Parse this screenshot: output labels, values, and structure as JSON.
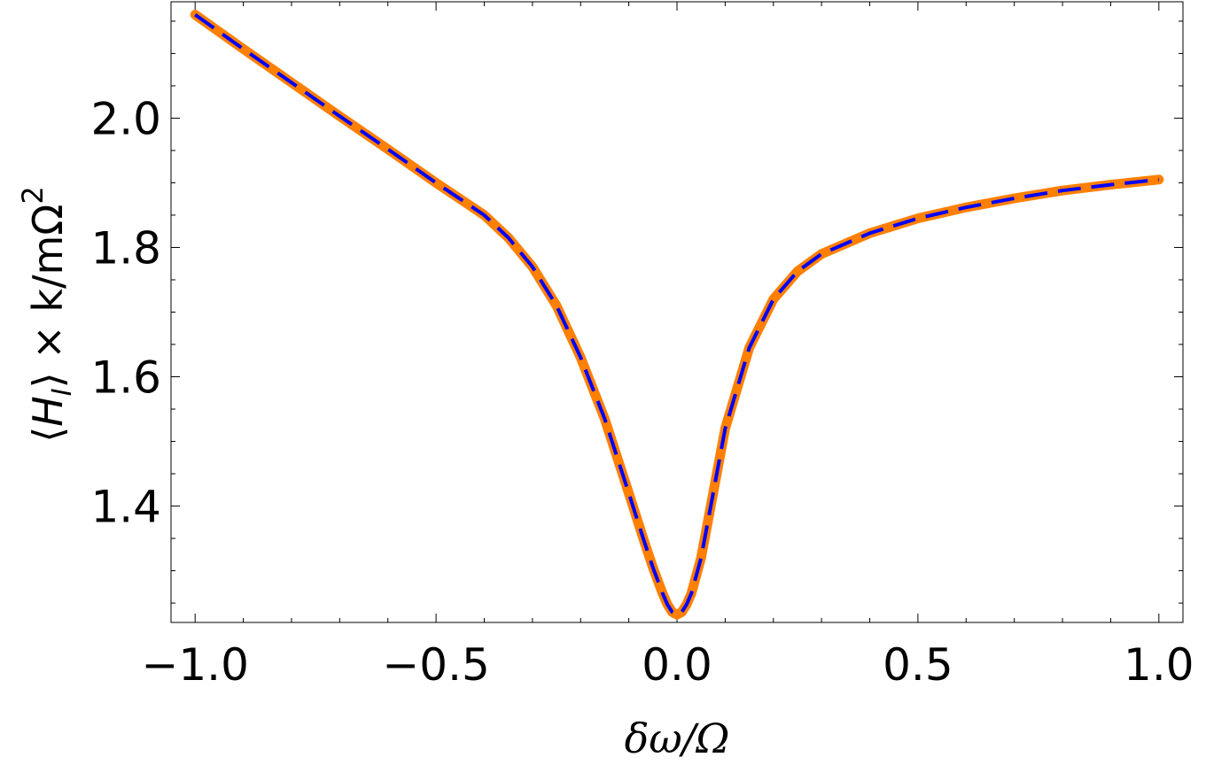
{
  "chart_data": {
    "type": "line",
    "xlabel": "δω/Ω",
    "ylabel": "⟨H_I⟩ × k/mΩ²",
    "ylabel_parts": {
      "open": "⟨",
      "H": "H",
      "sub": "I",
      "close": "⟩ × k/mΩ",
      "sup": "2"
    },
    "xlim": [
      -1.05,
      1.05
    ],
    "ylim": [
      1.22,
      2.18
    ],
    "x_ticks": [
      -1.0,
      -0.5,
      0.0,
      0.5,
      1.0
    ],
    "x_tick_labels": [
      "−1.0",
      "−0.5",
      "0.0",
      "0.5",
      "1.0"
    ],
    "y_ticks": [
      1.4,
      1.6,
      1.8,
      2.0
    ],
    "y_tick_labels": [
      "1.4",
      "1.6",
      "1.8",
      "2.0"
    ],
    "x": [
      -1.0,
      -0.9,
      -0.8,
      -0.7,
      -0.6,
      -0.5,
      -0.4,
      -0.35,
      -0.3,
      -0.25,
      -0.2,
      -0.15,
      -0.1,
      -0.07,
      -0.05,
      -0.03,
      -0.02,
      -0.01,
      0.0,
      0.01,
      0.02,
      0.03,
      0.05,
      0.07,
      0.1,
      0.15,
      0.2,
      0.25,
      0.3,
      0.4,
      0.5,
      0.6,
      0.7,
      0.8,
      0.9,
      1.0
    ],
    "series": [
      {
        "color": "#ff8000",
        "style": "solid",
        "values": [
          2.16,
          2.107,
          2.055,
          2.003,
          1.952,
          1.9,
          1.85,
          1.815,
          1.77,
          1.71,
          1.63,
          1.535,
          1.42,
          1.35,
          1.305,
          1.265,
          1.248,
          1.236,
          1.232,
          1.236,
          1.248,
          1.265,
          1.32,
          1.4,
          1.52,
          1.645,
          1.72,
          1.763,
          1.79,
          1.822,
          1.845,
          1.862,
          1.876,
          1.888,
          1.897,
          1.905
        ]
      },
      {
        "color": "#0000ff",
        "style": "dashed",
        "values": [
          2.16,
          2.107,
          2.055,
          2.003,
          1.952,
          1.9,
          1.85,
          1.815,
          1.77,
          1.71,
          1.63,
          1.535,
          1.42,
          1.35,
          1.305,
          1.265,
          1.248,
          1.236,
          1.232,
          1.236,
          1.248,
          1.265,
          1.32,
          1.4,
          1.52,
          1.645,
          1.72,
          1.763,
          1.79,
          1.822,
          1.845,
          1.862,
          1.876,
          1.888,
          1.897,
          1.905
        ]
      }
    ]
  }
}
